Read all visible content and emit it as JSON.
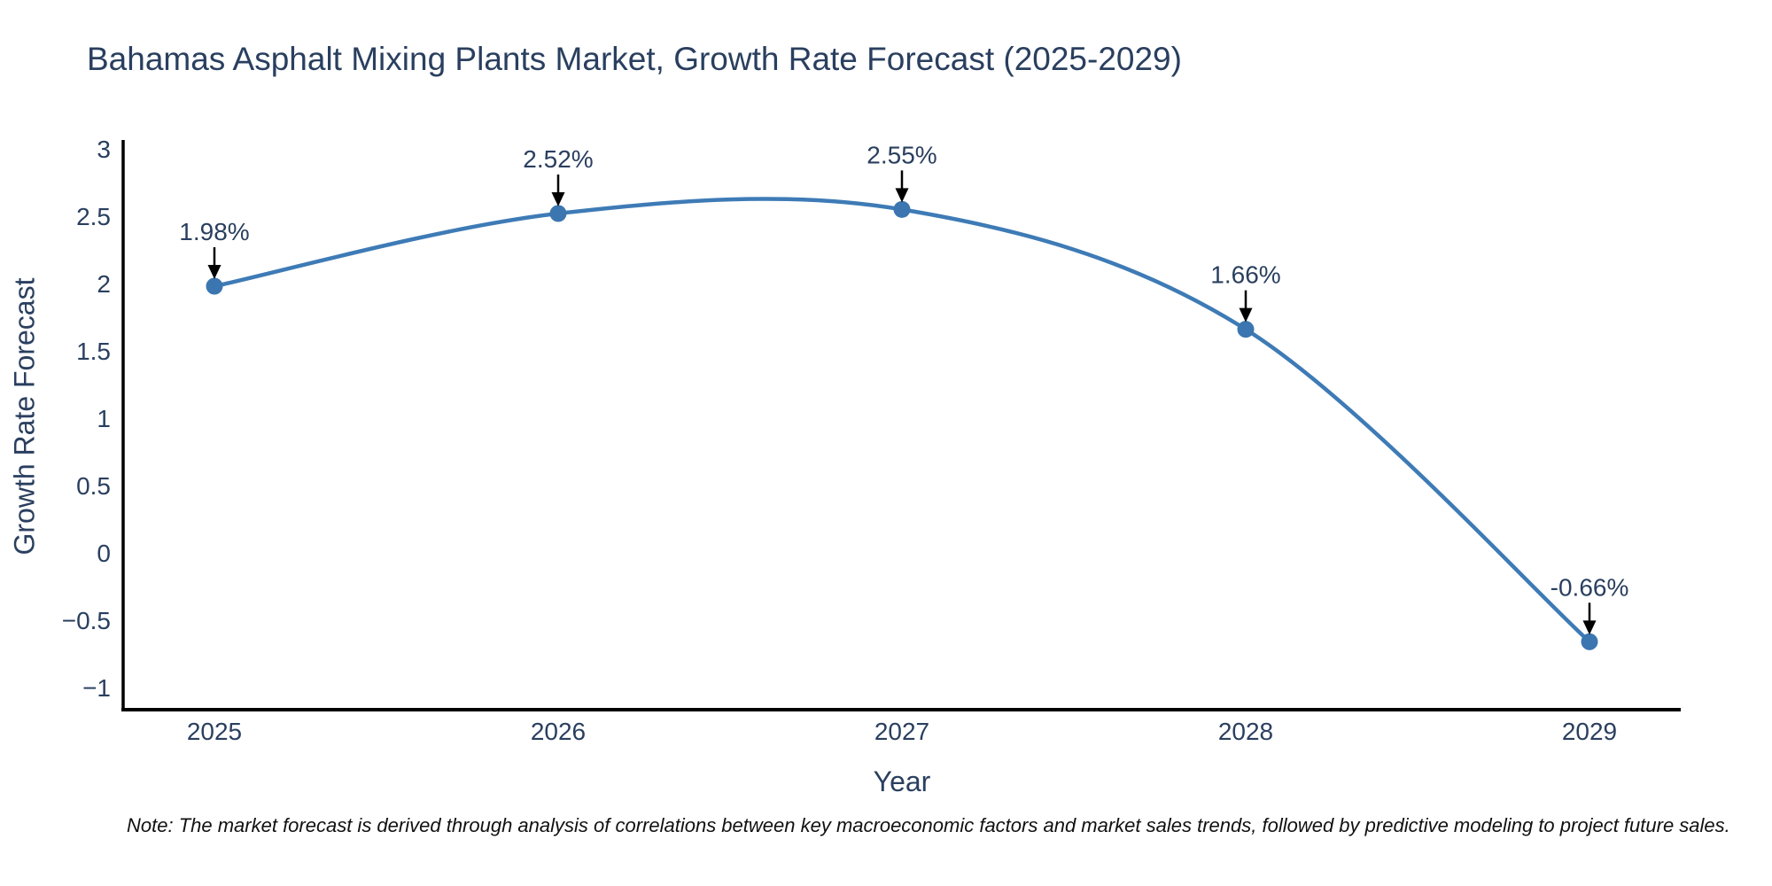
{
  "note": "Note: The market forecast is derived through analysis of correlations between key macroeconomic factors and market sales trends, followed by predictive modeling to project future sales.",
  "chart_data": {
    "type": "line",
    "title": "Bahamas Asphalt Mixing Plants Market, Growth Rate Forecast (2025-2029)",
    "xlabel": "Year",
    "ylabel": "Growth Rate Forecast",
    "x": [
      2025,
      2026,
      2027,
      2028,
      2029
    ],
    "xtick_labels": [
      "2025",
      "2026",
      "2027",
      "2028",
      "2029"
    ],
    "values": [
      1.98,
      2.52,
      2.55,
      1.66,
      -0.66
    ],
    "point_labels": [
      "1.98%",
      "2.52%",
      "2.55%",
      "1.66%",
      "-0.66%"
    ],
    "ytick_values": [
      3,
      2.5,
      2,
      1.5,
      1,
      0.5,
      0,
      -0.5,
      -1
    ],
    "ytick_labels": [
      "3",
      "2.5",
      "2",
      "1.5",
      "1",
      "0.5",
      "0",
      "−0.5",
      "−1"
    ],
    "ylim": [
      -1.19,
      3.07
    ],
    "xlim": [
      2024.73,
      2029.27
    ],
    "grid": false,
    "legend": "none",
    "line_shape": "spline",
    "line_color": "#3e7bb6",
    "marker_color": "#3b76b0",
    "axis_color": "#000000",
    "text_color": "#2a3f5f",
    "annotation_arrow_color": "#000000"
  }
}
